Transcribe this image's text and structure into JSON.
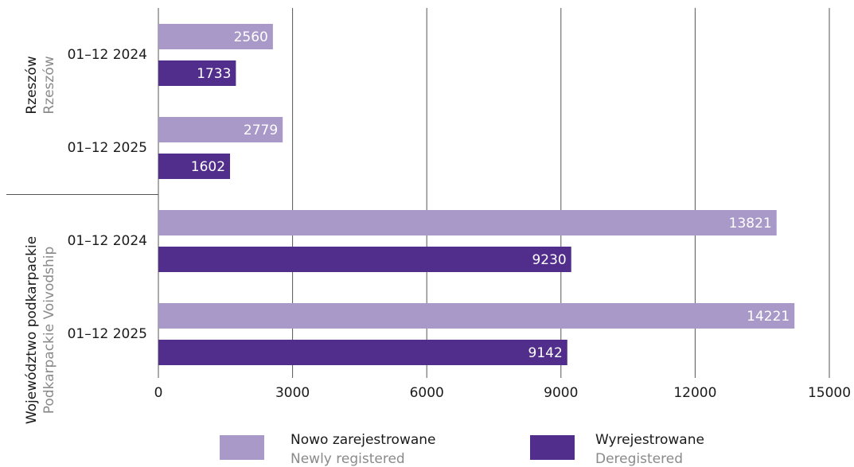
{
  "chart_data": {
    "type": "bar",
    "orientation": "horizontal",
    "groups": [
      {
        "name": "Rzeszów",
        "name_en": "Rzeszów"
      },
      {
        "name": "Województwo podkarpackie",
        "name_en": "Podkarpackie Voivodship"
      }
    ],
    "categories": [
      "01–12 2024",
      "01–12 2025",
      "01–12 2024",
      "01–12 2025"
    ],
    "series": [
      {
        "name": "Nowo zarejestrowane",
        "name_en": "Newly registered",
        "color": "#a899c9",
        "values": [
          2560,
          2779,
          13821,
          14221
        ]
      },
      {
        "name": "Wyrejestrowane",
        "name_en": "Deregistered",
        "color": "#512d8c",
        "values": [
          1733,
          1602,
          9230,
          9142
        ]
      }
    ],
    "xlim": [
      0,
      15000
    ],
    "xticks": [
      0,
      3000,
      6000,
      9000,
      12000,
      15000
    ],
    "grid": true
  }
}
